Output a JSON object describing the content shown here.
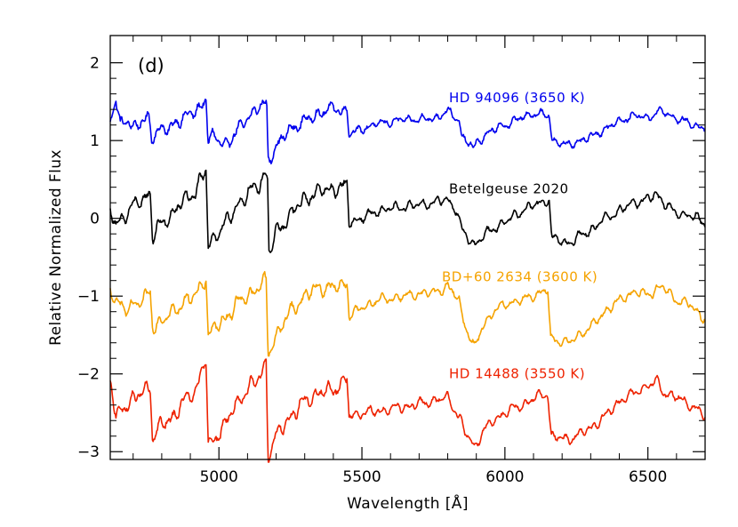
{
  "chart_data": {
    "type": "line",
    "panel_label": "(d)",
    "xlabel": "Wavelength [Å]",
    "ylabel": "Relative Normalized Flux",
    "xlim": [
      4620,
      6700
    ],
    "ylim": [
      -3.1,
      2.35
    ],
    "xticks": [
      5000,
      5500,
      6000,
      6500
    ],
    "yticks": [
      -3,
      -2,
      -1,
      0,
      1,
      2
    ],
    "x_tick_labels": [
      "5000",
      "5500",
      "6000",
      "6500"
    ],
    "y_tick_labels": [
      "−3",
      "−2",
      "−1",
      "0",
      "1",
      "2"
    ],
    "band_wavelengths": [
      4760,
      4955,
      5167,
      5448,
      5847,
      5890,
      6158
    ],
    "series": [
      {
        "name": "HD 94096 (3650 K)",
        "color": "#0000ee",
        "offset": 1.2,
        "depth_scale": 0.55,
        "anchors": [
          [
            4620,
            1.28
          ],
          [
            4640,
            1.52
          ],
          [
            4655,
            1.18
          ],
          [
            4680,
            1.28
          ],
          [
            4700,
            1.18
          ],
          [
            4730,
            1.22
          ],
          [
            4755,
            1.3
          ],
          [
            4765,
            1.05
          ],
          [
            4790,
            1.15
          ],
          [
            4820,
            1.12
          ],
          [
            4850,
            1.25
          ],
          [
            4880,
            1.3
          ],
          [
            4910,
            1.35
          ],
          [
            4940,
            1.45
          ],
          [
            4955,
            1.55
          ],
          [
            4962,
            1.0
          ],
          [
            4980,
            1.05
          ],
          [
            5000,
            1.0
          ],
          [
            5030,
            0.95
          ],
          [
            5060,
            1.1
          ],
          [
            5100,
            1.3
          ],
          [
            5140,
            1.42
          ],
          [
            5160,
            1.48
          ],
          [
            5167,
            1.45
          ],
          [
            5172,
            0.75
          ],
          [
            5200,
            0.92
          ],
          [
            5250,
            1.15
          ],
          [
            5300,
            1.25
          ],
          [
            5350,
            1.35
          ],
          [
            5400,
            1.42
          ],
          [
            5440,
            1.38
          ],
          [
            5448,
            1.4
          ],
          [
            5455,
            1.08
          ],
          [
            5500,
            1.15
          ],
          [
            5560,
            1.22
          ],
          [
            5650,
            1.27
          ],
          [
            5750,
            1.28
          ],
          [
            5800,
            1.38
          ],
          [
            5840,
            1.25
          ],
          [
            5850,
            1.05
          ],
          [
            5880,
            0.95
          ],
          [
            5890,
            0.88
          ],
          [
            5900,
            0.97
          ],
          [
            5950,
            1.12
          ],
          [
            6000,
            1.2
          ],
          [
            6050,
            1.28
          ],
          [
            6100,
            1.35
          ],
          [
            6140,
            1.33
          ],
          [
            6155,
            1.32
          ],
          [
            6165,
            1.0
          ],
          [
            6220,
            0.94
          ],
          [
            6300,
            1.04
          ],
          [
            6350,
            1.15
          ],
          [
            6400,
            1.25
          ],
          [
            6450,
            1.32
          ],
          [
            6500,
            1.3
          ],
          [
            6550,
            1.38
          ],
          [
            6600,
            1.28
          ],
          [
            6650,
            1.22
          ],
          [
            6700,
            1.15
          ]
        ]
      },
      {
        "name": "Betelgeuse 2020",
        "color": "#000000",
        "offset": 0.05,
        "depth_scale": 1.0,
        "anchors": [
          [
            4620,
            0.08
          ],
          [
            4640,
            -0.05
          ],
          [
            4660,
            -0.02
          ],
          [
            4700,
            0.15
          ],
          [
            4740,
            0.28
          ],
          [
            4760,
            0.3
          ],
          [
            4768,
            -0.25
          ],
          [
            4800,
            -0.05
          ],
          [
            4840,
            0.05
          ],
          [
            4880,
            0.25
          ],
          [
            4920,
            0.35
          ],
          [
            4950,
            0.58
          ],
          [
            4955,
            0.62
          ],
          [
            4962,
            -0.35
          ],
          [
            4990,
            -0.2
          ],
          [
            5020,
            -0.1
          ],
          [
            5060,
            0.15
          ],
          [
            5100,
            0.3
          ],
          [
            5140,
            0.45
          ],
          [
            5165,
            0.58
          ],
          [
            5170,
            0.52
          ],
          [
            5175,
            -0.45
          ],
          [
            5200,
            -0.2
          ],
          [
            5250,
            0.05
          ],
          [
            5300,
            0.25
          ],
          [
            5350,
            0.35
          ],
          [
            5400,
            0.38
          ],
          [
            5440,
            0.4
          ],
          [
            5448,
            0.42
          ],
          [
            5455,
            -0.05
          ],
          [
            5500,
            0.0
          ],
          [
            5560,
            0.1
          ],
          [
            5650,
            0.15
          ],
          [
            5750,
            0.2
          ],
          [
            5800,
            0.25
          ],
          [
            5830,
            0.1
          ],
          [
            5850,
            -0.15
          ],
          [
            5880,
            -0.3
          ],
          [
            5895,
            -0.33
          ],
          [
            5950,
            -0.15
          ],
          [
            6000,
            -0.05
          ],
          [
            6060,
            0.1
          ],
          [
            6110,
            0.18
          ],
          [
            6140,
            0.22
          ],
          [
            6155,
            0.24
          ],
          [
            6163,
            -0.25
          ],
          [
            6220,
            -0.32
          ],
          [
            6300,
            -0.15
          ],
          [
            6350,
            0.0
          ],
          [
            6400,
            0.1
          ],
          [
            6450,
            0.2
          ],
          [
            6500,
            0.25
          ],
          [
            6530,
            0.3
          ],
          [
            6560,
            0.2
          ],
          [
            6600,
            0.05
          ],
          [
            6650,
            0.05
          ],
          [
            6700,
            -0.08
          ]
        ]
      },
      {
        "name": "BD+60 2634 (3600 K)",
        "color": "#f5a300",
        "offset": -1.05,
        "depth_scale": 0.9,
        "anchors": [
          [
            4620,
            -0.9
          ],
          [
            4640,
            -1.05
          ],
          [
            4670,
            -1.2
          ],
          [
            4700,
            -1.1
          ],
          [
            4740,
            -1.05
          ],
          [
            4760,
            -0.95
          ],
          [
            4768,
            -1.4
          ],
          [
            4800,
            -1.3
          ],
          [
            4840,
            -1.22
          ],
          [
            4880,
            -1.05
          ],
          [
            4920,
            -1.0
          ],
          [
            4950,
            -0.78
          ],
          [
            4955,
            -0.72
          ],
          [
            4962,
            -1.5
          ],
          [
            4990,
            -1.4
          ],
          [
            5020,
            -1.3
          ],
          [
            5060,
            -1.1
          ],
          [
            5100,
            -1.0
          ],
          [
            5140,
            -0.88
          ],
          [
            5165,
            -0.8
          ],
          [
            5172,
            -1.75
          ],
          [
            5200,
            -1.5
          ],
          [
            5250,
            -1.2
          ],
          [
            5300,
            -1.0
          ],
          [
            5350,
            -0.88
          ],
          [
            5400,
            -0.9
          ],
          [
            5440,
            -0.85
          ],
          [
            5448,
            -0.82
          ],
          [
            5455,
            -1.25
          ],
          [
            5500,
            -1.15
          ],
          [
            5560,
            -1.05
          ],
          [
            5650,
            -1.0
          ],
          [
            5750,
            -0.95
          ],
          [
            5800,
            -0.88
          ],
          [
            5840,
            -1.05
          ],
          [
            5850,
            -1.25
          ],
          [
            5880,
            -1.55
          ],
          [
            5893,
            -1.68
          ],
          [
            5920,
            -1.4
          ],
          [
            5960,
            -1.2
          ],
          [
            6000,
            -1.1
          ],
          [
            6060,
            -1.05
          ],
          [
            6110,
            -0.98
          ],
          [
            6150,
            -0.92
          ],
          [
            6160,
            -1.55
          ],
          [
            6220,
            -1.6
          ],
          [
            6300,
            -1.4
          ],
          [
            6350,
            -1.2
          ],
          [
            6400,
            -1.05
          ],
          [
            6450,
            -0.95
          ],
          [
            6500,
            -0.98
          ],
          [
            6550,
            -0.88
          ],
          [
            6600,
            -1.05
          ],
          [
            6650,
            -1.12
          ],
          [
            6700,
            -1.3
          ]
        ]
      },
      {
        "name": "HD 14488 (3550 K)",
        "color": "#ee2200",
        "offset": -2.3,
        "depth_scale": 1.05,
        "anchors": [
          [
            4620,
            -2.1
          ],
          [
            4640,
            -2.55
          ],
          [
            4670,
            -2.4
          ],
          [
            4700,
            -2.35
          ],
          [
            4740,
            -2.2
          ],
          [
            4760,
            -2.15
          ],
          [
            4768,
            -2.85
          ],
          [
            4800,
            -2.65
          ],
          [
            4840,
            -2.55
          ],
          [
            4880,
            -2.35
          ],
          [
            4920,
            -2.2
          ],
          [
            4950,
            -1.85
          ],
          [
            4955,
            -1.8
          ],
          [
            4962,
            -2.95
          ],
          [
            4990,
            -2.8
          ],
          [
            5020,
            -2.65
          ],
          [
            5060,
            -2.4
          ],
          [
            5100,
            -2.2
          ],
          [
            5140,
            -2.05
          ],
          [
            5165,
            -1.85
          ],
          [
            5172,
            -3.05
          ],
          [
            5200,
            -2.8
          ],
          [
            5250,
            -2.55
          ],
          [
            5300,
            -2.35
          ],
          [
            5350,
            -2.25
          ],
          [
            5400,
            -2.2
          ],
          [
            5440,
            -2.1
          ],
          [
            5448,
            -2.05
          ],
          [
            5455,
            -2.55
          ],
          [
            5500,
            -2.5
          ],
          [
            5560,
            -2.48
          ],
          [
            5650,
            -2.42
          ],
          [
            5750,
            -2.35
          ],
          [
            5800,
            -2.3
          ],
          [
            5840,
            -2.55
          ],
          [
            5860,
            -2.75
          ],
          [
            5880,
            -2.85
          ],
          [
            5893,
            -2.95
          ],
          [
            5920,
            -2.75
          ],
          [
            5960,
            -2.6
          ],
          [
            6000,
            -2.5
          ],
          [
            6060,
            -2.4
          ],
          [
            6110,
            -2.3
          ],
          [
            6150,
            -2.25
          ],
          [
            6162,
            -2.8
          ],
          [
            6220,
            -2.85
          ],
          [
            6300,
            -2.7
          ],
          [
            6350,
            -2.55
          ],
          [
            6400,
            -2.35
          ],
          [
            6450,
            -2.25
          ],
          [
            6500,
            -2.15
          ],
          [
            6530,
            -2.1
          ],
          [
            6560,
            -2.25
          ],
          [
            6600,
            -2.3
          ],
          [
            6650,
            -2.4
          ],
          [
            6700,
            -2.55
          ]
        ]
      }
    ],
    "grid": false,
    "legend": "none"
  }
}
